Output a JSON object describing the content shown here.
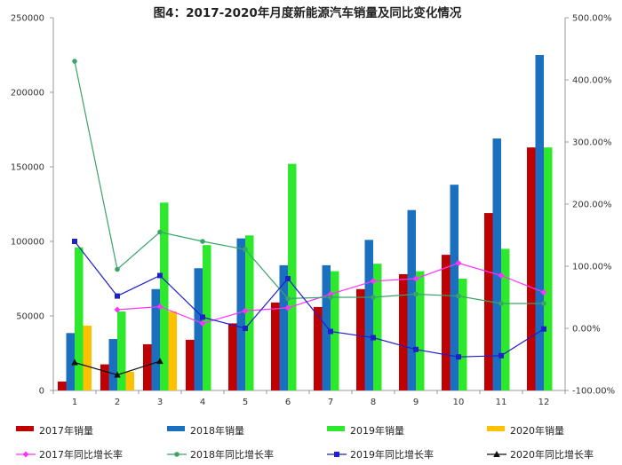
{
  "chart_data": {
    "type": "bar",
    "title": "图4：2017-2020年月度新能源汽车销量及同比变化情况",
    "xlabel": "",
    "ylabel": "",
    "categories": [
      "1",
      "2",
      "3",
      "4",
      "5",
      "6",
      "7",
      "8",
      "9",
      "10",
      "11",
      "12"
    ],
    "ylim": [
      0,
      250000
    ],
    "y_ticks": [
      "0",
      "50000",
      "100000",
      "150000",
      "200000",
      "250000"
    ],
    "y2lim": [
      -1.0,
      5.0
    ],
    "y2_ticks": [
      "-100.00%",
      "0.00%",
      "100.00%",
      "200.00%",
      "300.00%",
      "400.00%",
      "500.00%"
    ],
    "legend_position": "bottom",
    "grid": false,
    "bar_series": [
      {
        "name": "2017年销量",
        "color": "#c00000",
        "values": [
          6000,
          17500,
          31000,
          34000,
          45000,
          59000,
          56000,
          68000,
          78000,
          91000,
          119000,
          163000
        ]
      },
      {
        "name": "2018年销量",
        "color": "#1a6fbf",
        "values": [
          38500,
          34500,
          68000,
          82000,
          102000,
          84000,
          84000,
          101000,
          121000,
          138000,
          169000,
          225000
        ]
      },
      {
        "name": "2019年销量",
        "color": "#2ee82e",
        "values": [
          96000,
          53000,
          126000,
          97500,
          104000,
          152000,
          80000,
          85000,
          80000,
          75000,
          95000,
          163000
        ]
      },
      {
        "name": "2020年销量",
        "color": "#ffc000",
        "values": [
          43500,
          12500,
          53000,
          null,
          null,
          null,
          null,
          null,
          null,
          null,
          null,
          null
        ]
      }
    ],
    "line_series": [
      {
        "name": "2017年同比增长率",
        "color": "#ff33ff",
        "marker": "diamond",
        "values": [
          null,
          0.3,
          0.35,
          0.08,
          0.28,
          0.33,
          0.55,
          0.76,
          0.8,
          1.05,
          0.85,
          0.58
        ]
      },
      {
        "name": "2018年同比增长率",
        "color": "#3aa36a",
        "marker": "circle",
        "values": [
          4.3,
          0.95,
          1.55,
          1.4,
          1.27,
          0.48,
          0.5,
          0.5,
          0.55,
          0.52,
          0.4,
          0.4
        ]
      },
      {
        "name": "2019年同比增长率",
        "color": "#1f1fcc",
        "marker": "square",
        "values": [
          1.4,
          0.52,
          0.85,
          0.18,
          0.0,
          0.8,
          -0.05,
          -0.15,
          -0.34,
          -0.46,
          -0.44,
          -0.01
        ]
      },
      {
        "name": "2020年同比增长率",
        "color": "#111111",
        "marker": "triangle",
        "values": [
          -0.55,
          -0.75,
          -0.53,
          null,
          null,
          null,
          null,
          null,
          null,
          null,
          null,
          null
        ]
      }
    ]
  }
}
